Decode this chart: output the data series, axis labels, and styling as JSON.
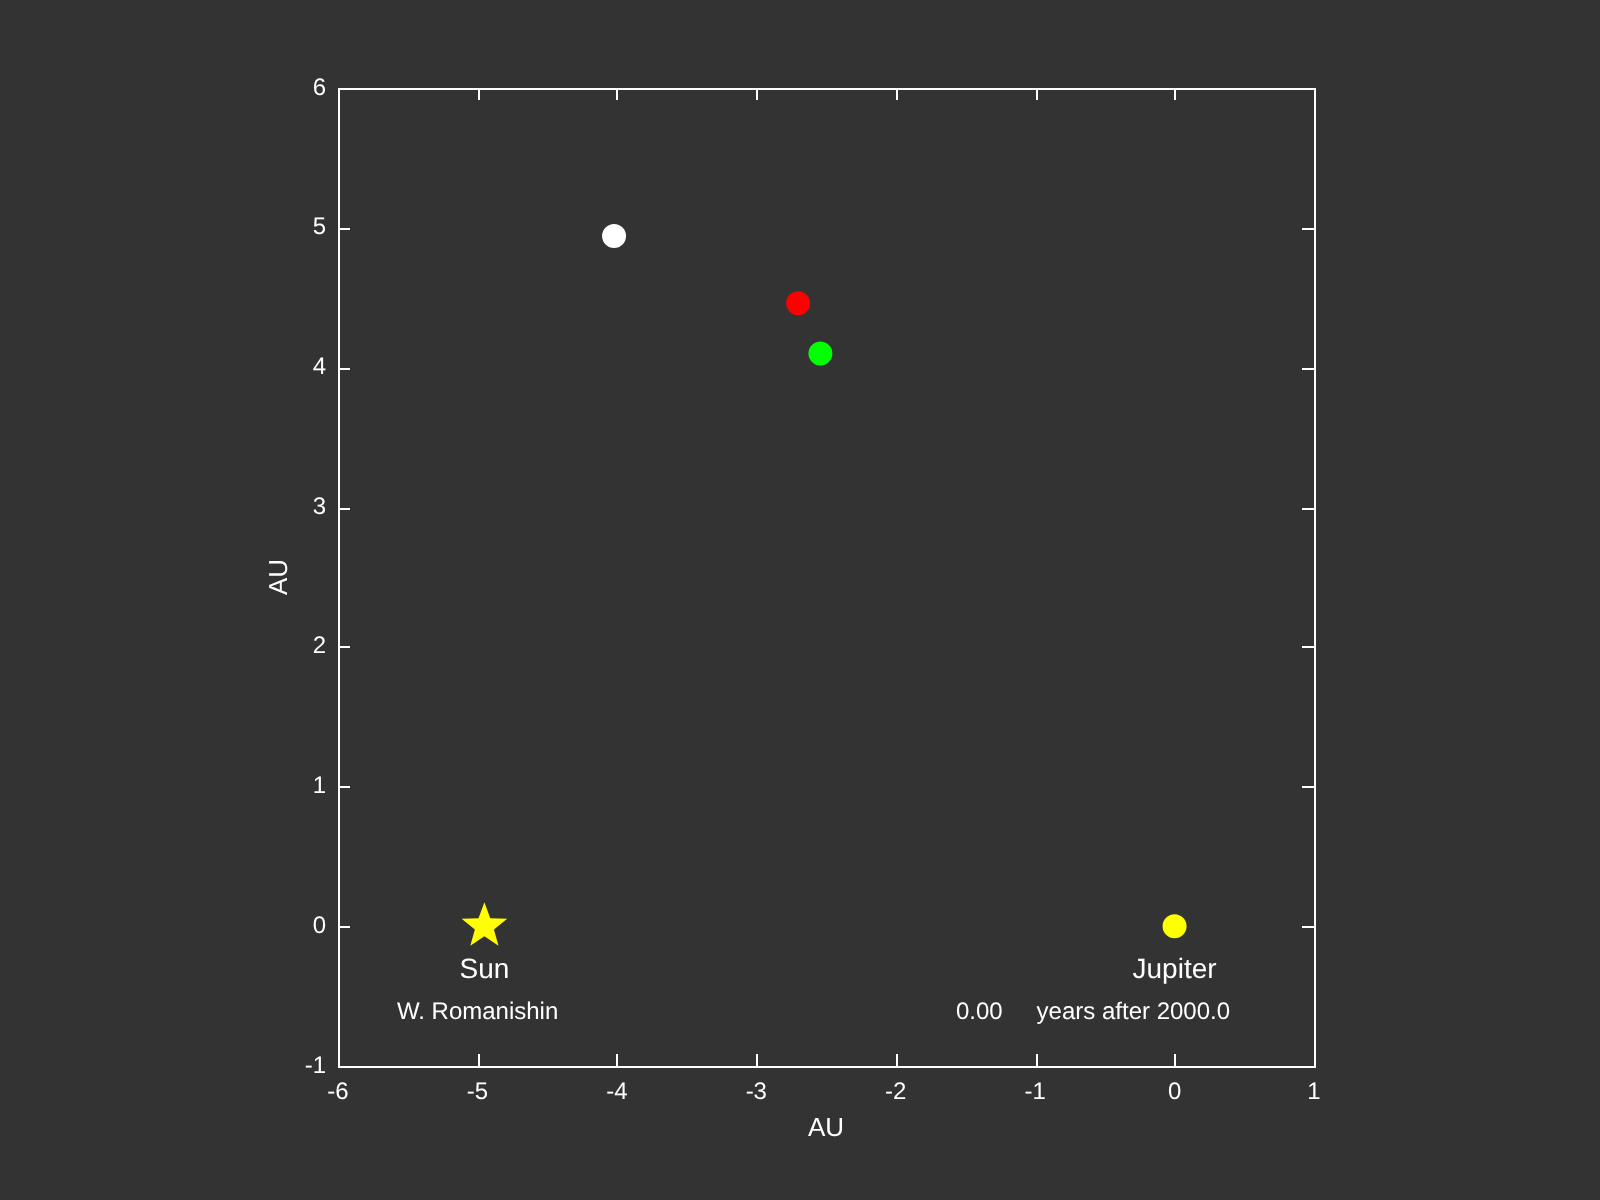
{
  "chart_data": {
    "type": "scatter",
    "xlabel": "AU",
    "ylabel": "AU",
    "xlim": [
      -6,
      1
    ],
    "ylim": [
      -1,
      6
    ],
    "xticks": [
      -6,
      -5,
      -4,
      -3,
      -2,
      -1,
      0,
      1
    ],
    "yticks": [
      -1,
      0,
      1,
      2,
      3,
      4,
      5,
      6
    ],
    "series": [
      {
        "name": "Sun",
        "color": "#ffff00",
        "marker": "star",
        "x": [
          -4.95
        ],
        "values": [
          0
        ]
      },
      {
        "name": "Jupiter",
        "color": "#ffff00",
        "marker": "circle",
        "x": [
          0
        ],
        "values": [
          0
        ]
      },
      {
        "color": "#ffffff",
        "marker": "circle",
        "x": [
          -4.02
        ],
        "values": [
          4.94
        ]
      },
      {
        "color": "#ff0000",
        "marker": "circle",
        "x": [
          -2.7
        ],
        "values": [
          4.46
        ]
      },
      {
        "color": "#00ff00",
        "marker": "circle",
        "x": [
          -2.54
        ],
        "values": [
          4.1
        ]
      }
    ],
    "annotations": [
      "W. Romanishin",
      "0.00",
      "years after 2000.0"
    ]
  }
}
